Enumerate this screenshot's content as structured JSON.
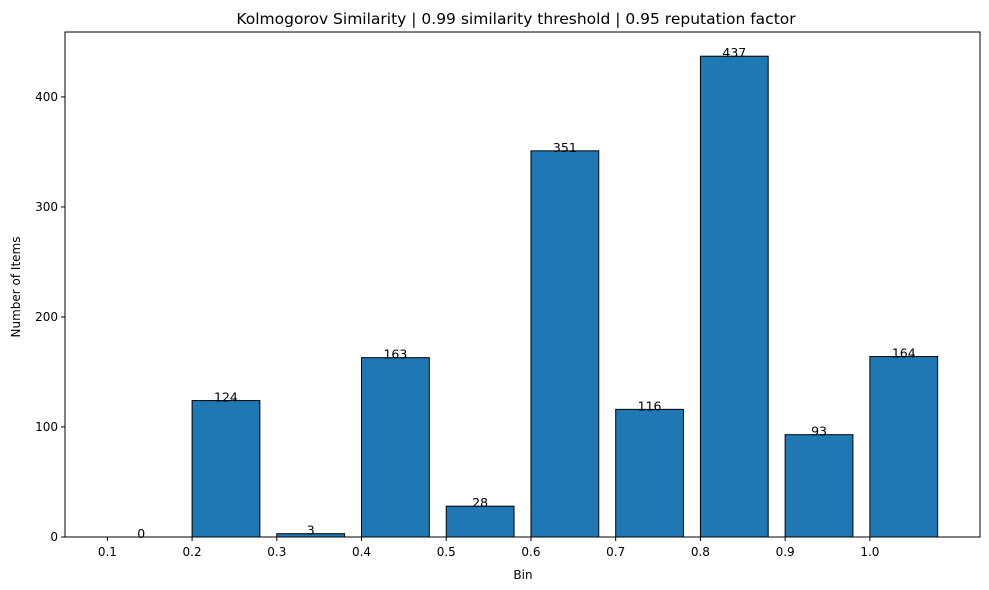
{
  "chart_data": {
    "type": "bar",
    "title": "Kolmogorov Similarity | 0.99 similarity threshold | 0.95 reputation factor",
    "xlabel": "Bin",
    "ylabel": "Number of Items",
    "bin_left_edges": [
      0.1,
      0.2,
      0.3,
      0.4,
      0.5,
      0.6,
      0.7,
      0.8,
      0.9,
      1.0
    ],
    "bin_width": 0.08,
    "values": [
      0,
      124,
      3,
      163,
      28,
      351,
      116,
      437,
      93,
      164
    ],
    "x_ticks": [
      0.1,
      0.2,
      0.3,
      0.4,
      0.5,
      0.6,
      0.7,
      0.8,
      0.9,
      1.0
    ],
    "x_tick_labels": [
      "0.1",
      "0.2",
      "0.3",
      "0.4",
      "0.5",
      "0.6",
      "0.7",
      "0.8",
      "0.9",
      "1.0"
    ],
    "y_ticks": [
      0,
      100,
      200,
      300,
      400
    ],
    "y_tick_labels": [
      "0",
      "100",
      "200",
      "300",
      "400"
    ],
    "xlim": [
      0.05,
      1.13
    ],
    "ylim": [
      0,
      459
    ],
    "bar_color": "#1f77b4",
    "edge_color": "#000000",
    "grid": false,
    "legend": false
  }
}
